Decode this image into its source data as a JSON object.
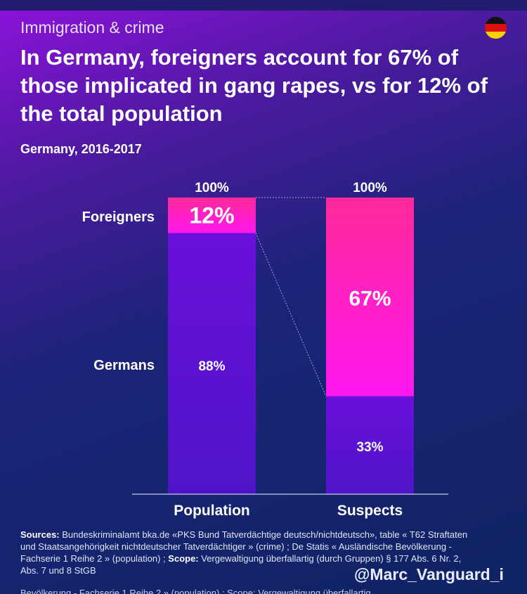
{
  "header": {
    "kicker": "Immigration & crime",
    "title": "In Germany, foreigners account for 67% of those implicated in gang rapes, vs for 12% of the total population",
    "subtitle": "Germany, 2016-2017",
    "flag_icon": "germany-flag-icon"
  },
  "chart_data": {
    "type": "bar",
    "stacked": true,
    "ylim": [
      0,
      100
    ],
    "categories": [
      "Population",
      "Suspects"
    ],
    "totals_labels": [
      "100%",
      "100%"
    ],
    "series": [
      {
        "name": "Foreigners",
        "values": [
          12,
          67
        ],
        "labels": [
          "12%",
          "67%"
        ],
        "color": "#ff1fd0"
      },
      {
        "name": "Germans",
        "values": [
          88,
          33
        ],
        "labels": [
          "88%",
          "33%"
        ],
        "color": "#6a10d8"
      }
    ]
  },
  "footer": {
    "sources_label": "Sources:",
    "sources_text": " Bundeskriminalamt bka.de «PKS Bund Tatverdächtige deutsch/nichtdeutsch», table « T62 Straftaten und Staatsangehörigkeit nichtdeutscher Tatverdächtiger » (crime) ; De Statis « Ausländische Bevölkerung - Fachserie 1 Reihe 2 » (population) ; ",
    "scope_label": "Scope:",
    "scope_text": " Vergewaltigung überfallartig (durch Gruppen) § 177 Abs. 6 Nr. 2, Abs. 7 und 8 StGB",
    "handle": "@Marc_Vanguard_i",
    "ghost_text": "Bevölkerung - Fachserie 1 Reihe 2 » (population) ; Scope: Vergewaltigung überfallartig"
  }
}
